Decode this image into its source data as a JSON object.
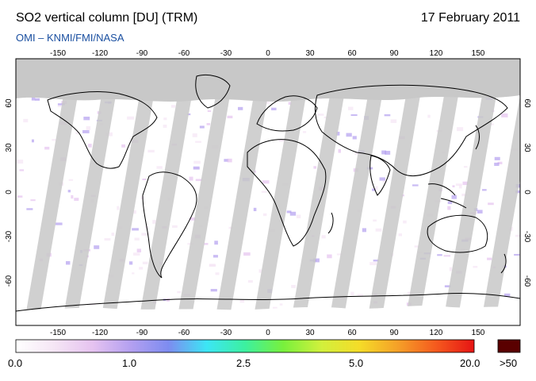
{
  "header": {
    "title": "SO2 vertical column [DU] (TRM)",
    "date": "17 February 2011",
    "source": "OMI  –  KNMI/FMI/NASA"
  },
  "map": {
    "projection": "equirectangular",
    "lon_range": [
      -180,
      180
    ],
    "lat_range": [
      -90,
      90
    ],
    "lon_ticks": [
      "-150",
      "-120",
      "-90",
      "-60",
      "-30",
      "0",
      "30",
      "60",
      "90",
      "120",
      "150"
    ],
    "lat_ticks": [
      "60",
      "30",
      "0",
      "-30",
      "-60"
    ],
    "background_color": "#ffffff",
    "land_outline_color": "#000000",
    "no_data_color": "#c8c8c8",
    "polar_no_data_color": "#c8c8c8",
    "land_gap_color": "#909090"
  },
  "colorbar": {
    "labels": [
      "0.0",
      "1.0",
      "2.5",
      "5.0",
      "20.0"
    ],
    "overflow_label": ">50",
    "overflow_color": "#5a0000",
    "colors": [
      "#ffffff",
      "#f5e6f5",
      "#e6c3f0",
      "#b4a0f0",
      "#7d8cf0",
      "#3ce6f5",
      "#3cf0a0",
      "#78f03c",
      "#d2f03c",
      "#f5dc28",
      "#f5a028",
      "#f55a1e",
      "#e61414"
    ]
  }
}
